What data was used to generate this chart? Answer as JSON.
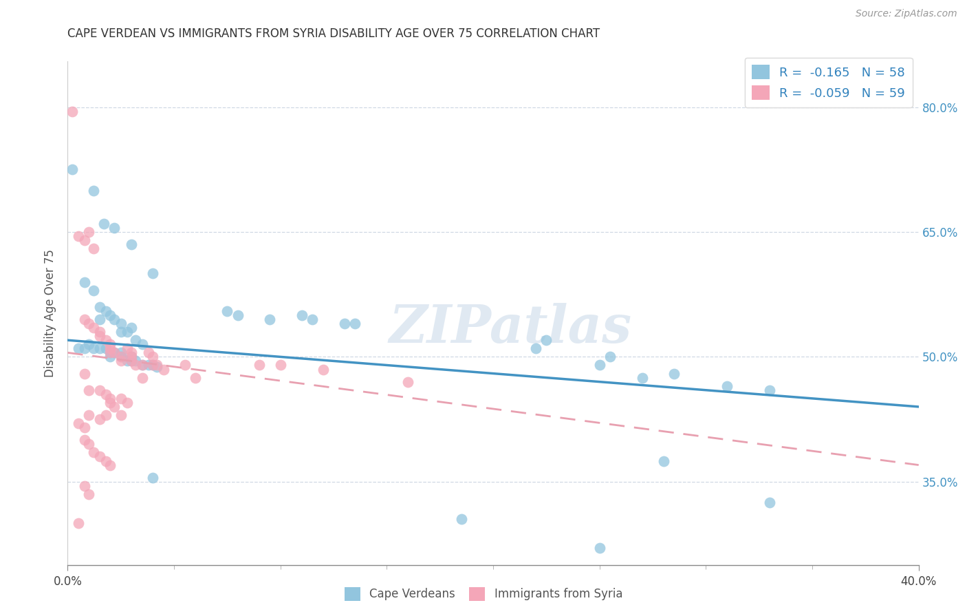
{
  "title": "CAPE VERDEAN VS IMMIGRANTS FROM SYRIA DISABILITY AGE OVER 75 CORRELATION CHART",
  "source": "Source: ZipAtlas.com",
  "ylabel": "Disability Age Over 75",
  "y_ticks": [
    0.35,
    0.5,
    0.65,
    0.8
  ],
  "y_tick_labels": [
    "35.0%",
    "50.0%",
    "65.0%",
    "80.0%"
  ],
  "watermark": "ZIPatlas",
  "legend_line1": "R =  -0.165   N = 58",
  "legend_line2": "R =  -0.059   N = 59",
  "blue_color": "#92c5de",
  "pink_color": "#f4a6b8",
  "blue_line_color": "#4393c3",
  "pink_line_color": "#d6604d",
  "blue_scatter": [
    [
      0.002,
      0.725
    ],
    [
      0.012,
      0.7
    ],
    [
      0.017,
      0.66
    ],
    [
      0.022,
      0.655
    ],
    [
      0.03,
      0.635
    ],
    [
      0.04,
      0.6
    ],
    [
      0.008,
      0.59
    ],
    [
      0.012,
      0.58
    ],
    [
      0.015,
      0.56
    ],
    [
      0.015,
      0.545
    ],
    [
      0.018,
      0.555
    ],
    [
      0.02,
      0.55
    ],
    [
      0.022,
      0.545
    ],
    [
      0.025,
      0.54
    ],
    [
      0.025,
      0.53
    ],
    [
      0.028,
      0.53
    ],
    [
      0.03,
      0.535
    ],
    [
      0.032,
      0.52
    ],
    [
      0.035,
      0.515
    ],
    [
      0.005,
      0.51
    ],
    [
      0.008,
      0.51
    ],
    [
      0.01,
      0.515
    ],
    [
      0.012,
      0.51
    ],
    [
      0.015,
      0.51
    ],
    [
      0.018,
      0.51
    ],
    [
      0.02,
      0.505
    ],
    [
      0.02,
      0.5
    ],
    [
      0.022,
      0.505
    ],
    [
      0.025,
      0.505
    ],
    [
      0.025,
      0.5
    ],
    [
      0.028,
      0.495
    ],
    [
      0.03,
      0.5
    ],
    [
      0.03,
      0.495
    ],
    [
      0.032,
      0.495
    ],
    [
      0.035,
      0.49
    ],
    [
      0.038,
      0.49
    ],
    [
      0.04,
      0.49
    ],
    [
      0.042,
      0.488
    ],
    [
      0.075,
      0.555
    ],
    [
      0.08,
      0.55
    ],
    [
      0.095,
      0.545
    ],
    [
      0.11,
      0.55
    ],
    [
      0.115,
      0.545
    ],
    [
      0.13,
      0.54
    ],
    [
      0.135,
      0.54
    ],
    [
      0.22,
      0.51
    ],
    [
      0.225,
      0.52
    ],
    [
      0.25,
      0.49
    ],
    [
      0.255,
      0.5
    ],
    [
      0.27,
      0.475
    ],
    [
      0.285,
      0.48
    ],
    [
      0.31,
      0.465
    ],
    [
      0.33,
      0.46
    ],
    [
      0.28,
      0.375
    ],
    [
      0.185,
      0.305
    ],
    [
      0.04,
      0.355
    ],
    [
      0.25,
      0.27
    ],
    [
      0.33,
      0.325
    ]
  ],
  "pink_scatter": [
    [
      0.002,
      0.795
    ],
    [
      0.005,
      0.645
    ],
    [
      0.008,
      0.64
    ],
    [
      0.01,
      0.65
    ],
    [
      0.012,
      0.63
    ],
    [
      0.008,
      0.545
    ],
    [
      0.01,
      0.54
    ],
    [
      0.012,
      0.535
    ],
    [
      0.015,
      0.53
    ],
    [
      0.015,
      0.525
    ],
    [
      0.018,
      0.52
    ],
    [
      0.02,
      0.515
    ],
    [
      0.02,
      0.51
    ],
    [
      0.02,
      0.505
    ],
    [
      0.022,
      0.505
    ],
    [
      0.025,
      0.5
    ],
    [
      0.025,
      0.495
    ],
    [
      0.028,
      0.51
    ],
    [
      0.03,
      0.505
    ],
    [
      0.03,
      0.5
    ],
    [
      0.03,
      0.495
    ],
    [
      0.032,
      0.49
    ],
    [
      0.035,
      0.49
    ],
    [
      0.038,
      0.505
    ],
    [
      0.04,
      0.5
    ],
    [
      0.04,
      0.49
    ],
    [
      0.042,
      0.49
    ],
    [
      0.045,
      0.485
    ],
    [
      0.008,
      0.48
    ],
    [
      0.01,
      0.46
    ],
    [
      0.015,
      0.46
    ],
    [
      0.018,
      0.455
    ],
    [
      0.02,
      0.45
    ],
    [
      0.02,
      0.445
    ],
    [
      0.022,
      0.44
    ],
    [
      0.025,
      0.45
    ],
    [
      0.028,
      0.445
    ],
    [
      0.01,
      0.43
    ],
    [
      0.015,
      0.425
    ],
    [
      0.018,
      0.43
    ],
    [
      0.025,
      0.43
    ],
    [
      0.005,
      0.42
    ],
    [
      0.008,
      0.415
    ],
    [
      0.008,
      0.4
    ],
    [
      0.01,
      0.395
    ],
    [
      0.012,
      0.385
    ],
    [
      0.015,
      0.38
    ],
    [
      0.018,
      0.375
    ],
    [
      0.02,
      0.37
    ],
    [
      0.008,
      0.345
    ],
    [
      0.01,
      0.335
    ],
    [
      0.005,
      0.3
    ],
    [
      0.06,
      0.475
    ],
    [
      0.09,
      0.49
    ],
    [
      0.1,
      0.49
    ],
    [
      0.12,
      0.485
    ],
    [
      0.16,
      0.47
    ],
    [
      0.035,
      0.475
    ],
    [
      0.055,
      0.49
    ]
  ],
  "xlim": [
    0.0,
    0.4
  ],
  "ylim": [
    0.25,
    0.855
  ],
  "blue_trendline": [
    0.0,
    0.52,
    0.4,
    0.44
  ],
  "pink_trendline": [
    0.0,
    0.505,
    0.4,
    0.37
  ]
}
